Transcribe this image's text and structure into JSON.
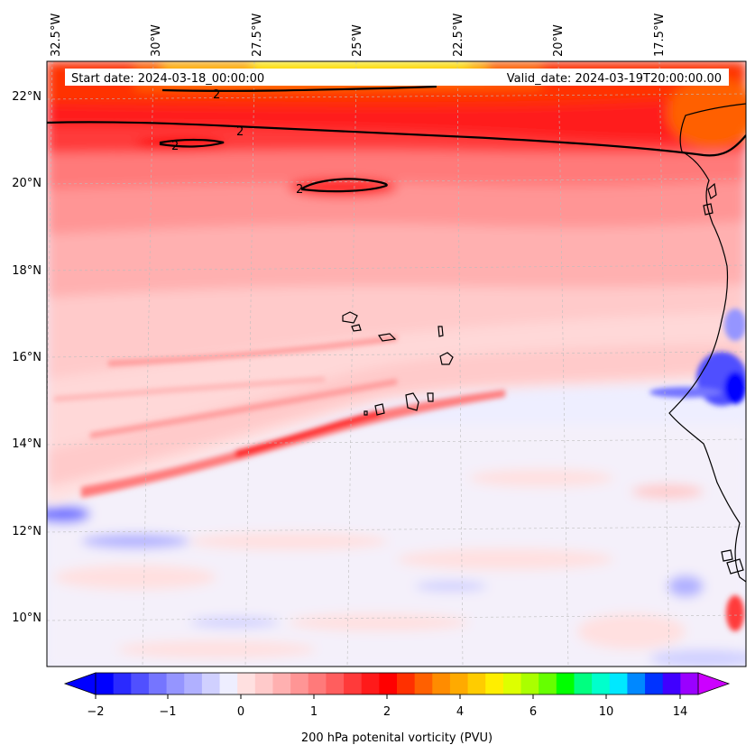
{
  "header": {
    "start_date": "Start date: 2024-03-18_00:00:00",
    "valid_date": "Valid_date: 2024-03-19T20:00:00.00"
  },
  "axes": {
    "lon_labels": [
      "32.5°W",
      "30°W",
      "27.5°W",
      "25°W",
      "22.5°W",
      "20°W",
      "17.5°W"
    ],
    "lat_labels": [
      "22°N",
      "20°N",
      "18°N",
      "16°N",
      "14°N",
      "12°N",
      "10°N"
    ]
  },
  "contour_labels": [
    "2",
    "2",
    "2",
    "2"
  ],
  "colorbar": {
    "title": "200 hPa potenital vorticity (PVU)",
    "tick_labels": [
      "−2",
      "−1",
      "0",
      "1",
      "2",
      "4",
      "6",
      "10",
      "14"
    ],
    "colors": [
      "#0000ff",
      "#2a2aff",
      "#5050ff",
      "#7575ff",
      "#9595ff",
      "#b0b0ff",
      "#d0d0ff",
      "#eeeeff",
      "#ffe0e0",
      "#ffcaca",
      "#ffb0b0",
      "#ff9595",
      "#ff7a7a",
      "#ff5e5e",
      "#ff3a3a",
      "#ff1a1a",
      "#ff0000",
      "#ff3000",
      "#ff6000",
      "#ff8c00",
      "#ffaa00",
      "#ffcc00",
      "#ffee00",
      "#ddff00",
      "#aaff00",
      "#66ff00",
      "#00ff00",
      "#00ff80",
      "#00ffcc",
      "#00e8ff",
      "#0088ff",
      "#0033ff",
      "#4000ff",
      "#9a00ff"
    ],
    "under_color": "#0000ff",
    "over_color": "#cc00ff"
  }
}
